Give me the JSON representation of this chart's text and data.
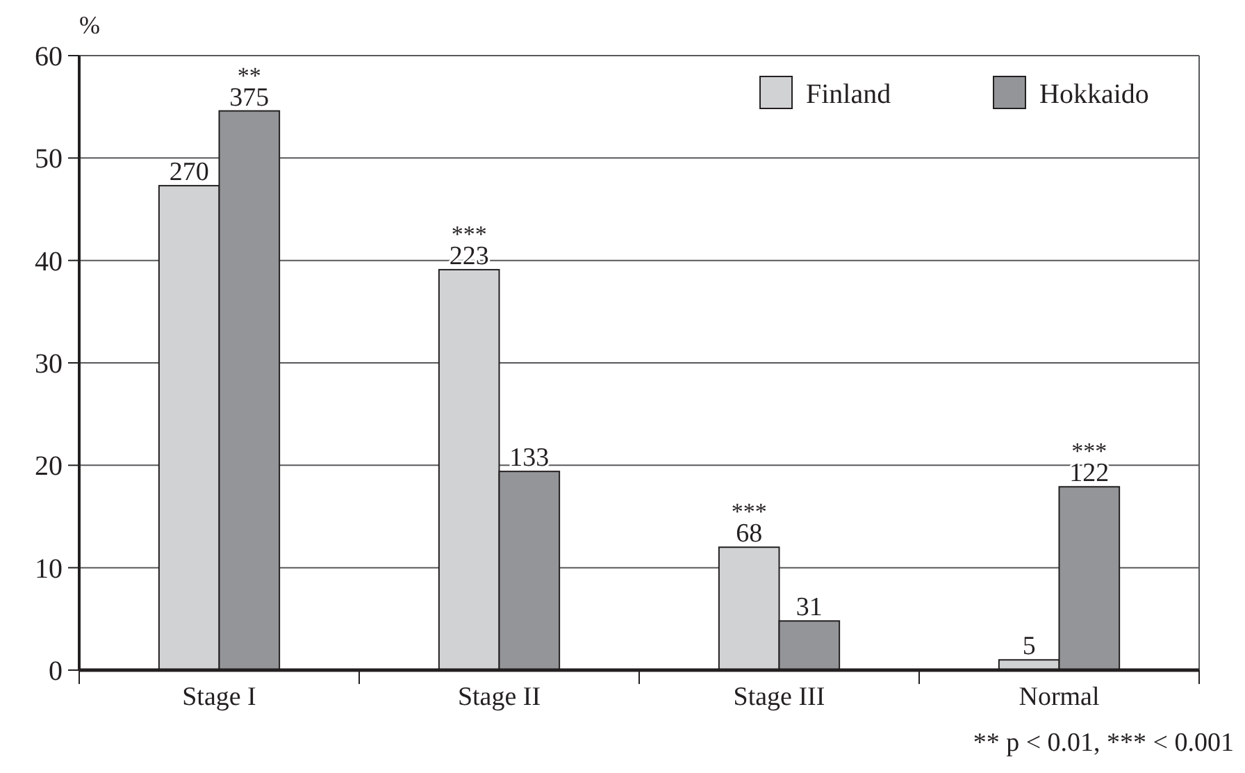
{
  "chart_data": {
    "type": "bar",
    "ylabel": "%",
    "categories": [
      "Stage I",
      "Stage II",
      "Stage III",
      "Normal"
    ],
    "series": [
      {
        "name": "Finland",
        "color": "#d1d2d4",
        "values": [
          47.3,
          39.1,
          12.0,
          1.0
        ]
      },
      {
        "name": "Hokkaido",
        "color": "#939598",
        "values": [
          54.6,
          19.4,
          4.8,
          17.9
        ]
      }
    ],
    "ylim": [
      0,
      60
    ],
    "yticks": [
      0,
      10,
      20,
      30,
      40,
      50,
      60
    ],
    "grid": "y",
    "legend": "top right",
    "annotations": [
      {
        "text": "270",
        "x": "Stage I",
        "y": 47.3
      },
      {
        "text": "375",
        "x": "Stage I",
        "y": 54.6
      },
      {
        "text": "**",
        "x": "Stage I",
        "y": 54.6
      },
      {
        "text": "223",
        "x": "Stage II",
        "y": 39.1
      },
      {
        "text": "***",
        "x": "Stage II",
        "y": 39.1
      },
      {
        "text": "133",
        "x": "Stage II",
        "y": 19.4
      },
      {
        "text": "68",
        "x": "Stage III",
        "y": 12.0
      },
      {
        "text": "***",
        "x": "Stage III",
        "y": 12.0
      },
      {
        "text": "31",
        "x": "Stage III",
        "y": 4.8
      },
      {
        "text": "5",
        "x": "Normal",
        "y": 1.0
      },
      {
        "text": "122",
        "x": "Normal",
        "y": 17.9
      },
      {
        "text": "***",
        "x": "Normal",
        "y": 17.9
      },
      "** p < 0.01, *** < 0.001"
    ]
  }
}
